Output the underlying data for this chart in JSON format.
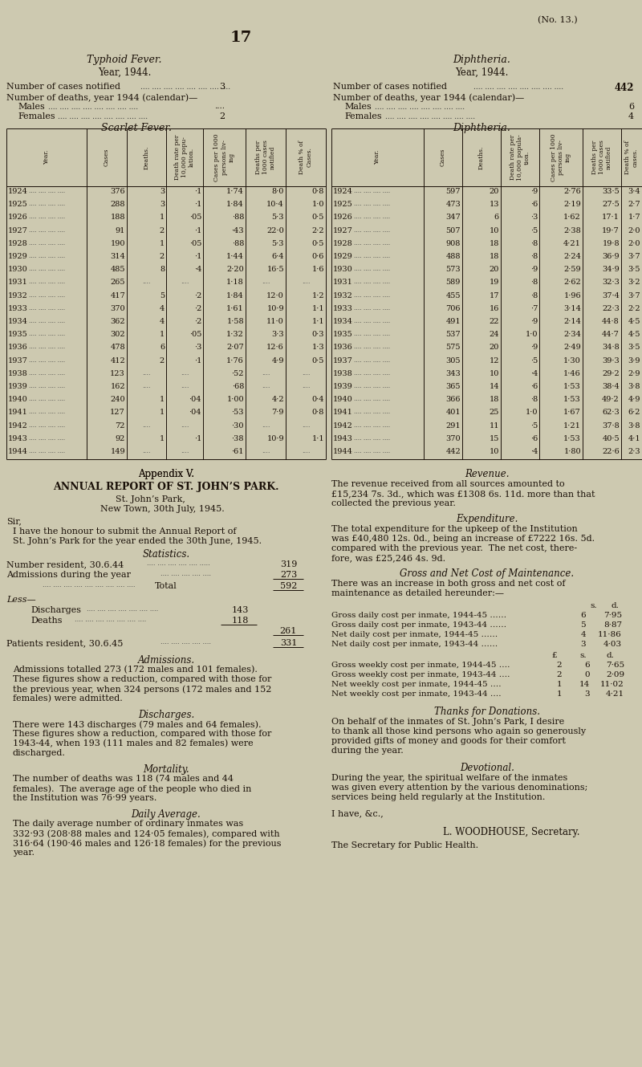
{
  "bg_color": "#cdc9b0",
  "page_num": "17",
  "no_label": "(No. 13.)",
  "typhoid_title": "Typhoid Fever.",
  "typhoid_year": "Year, 1944.",
  "typhoid_cases_label": "Number of cases notified",
  "typhoid_cases_val": "3",
  "typhoid_deaths_label": "Number of deaths, year 1944 (calendar)—",
  "typhoid_males_label": "Males",
  "typhoid_males_val": "....",
  "typhoid_females_label": "Females",
  "typhoid_females_val": "2",
  "diphtheria_title": "Diphtheria.",
  "diphtheria_year": "Year, 1944.",
  "diphtheria_cases_label": "Number of cases notified",
  "diphtheria_cases_val": "442",
  "diphtheria_deaths_label": "Number of deaths, year 1944 (calendar)—",
  "diphtheria_males_label": "Males",
  "diphtheria_males_val": "6",
  "diphtheria_females_label": "Females",
  "diphtheria_females_val": "4",
  "scarlet_title": "Scarlet Fever.",
  "diphtheria_table_title": "Diphtheria.",
  "scarlet_data": [
    [
      "1924",
      "376",
      "3",
      "·1",
      "1·74",
      "8·0",
      "0·8"
    ],
    [
      "1925",
      "288",
      "3",
      "·1",
      "1·84",
      "10·4",
      "1·0"
    ],
    [
      "1926",
      "188",
      "1",
      "·05",
      "·88",
      "5·3",
      "0·5"
    ],
    [
      "1927",
      "91",
      "2",
      "·1",
      "·43",
      "22·0",
      "2·2"
    ],
    [
      "1928",
      "190",
      "1",
      "·05",
      "·88",
      "5·3",
      "0·5"
    ],
    [
      "1929",
      "314",
      "2",
      "·1",
      "1·44",
      "6·4",
      "0·6"
    ],
    [
      "1930",
      "485",
      "8",
      "·4",
      "2·20",
      "16·5",
      "1·6"
    ],
    [
      "1931",
      "265",
      "",
      "",
      "1·18",
      "",
      ""
    ],
    [
      "1932",
      "417",
      "5",
      "·2",
      "1·84",
      "12·0",
      "1·2"
    ],
    [
      "1933",
      "370",
      "4",
      "·2",
      "1·61",
      "10·9",
      "1·1"
    ],
    [
      "1934",
      "362",
      "4",
      "·2",
      "1·58",
      "11·0",
      "1·1"
    ],
    [
      "1935",
      "302",
      "1",
      "·05",
      "1·32",
      "3·3",
      "0·3"
    ],
    [
      "1936",
      "478",
      "6",
      "·3",
      "2·07",
      "12·6",
      "1·3"
    ],
    [
      "1937",
      "412",
      "2",
      "·1",
      "1·76",
      "4·9",
      "0·5"
    ],
    [
      "1938",
      "123",
      "",
      "",
      "·52",
      "",
      ""
    ],
    [
      "1939",
      "162",
      "",
      "",
      "·68",
      "",
      ""
    ],
    [
      "1940",
      "240",
      "1",
      "·04",
      "1·00",
      "4·2",
      "0·4"
    ],
    [
      "1941",
      "127",
      "1",
      "·04",
      "·53",
      "7·9",
      "0·8"
    ],
    [
      "1942",
      "72",
      "",
      "",
      "·30",
      "",
      ""
    ],
    [
      "1943",
      "92",
      "1",
      "·1",
      "·38",
      "10·9",
      "1·1"
    ],
    [
      "1944",
      "149",
      "",
      "",
      "·61",
      "",
      ""
    ]
  ],
  "diph_data": [
    [
      "1924",
      "597",
      "20",
      "·9",
      "2·76",
      "33·5",
      "3·4"
    ],
    [
      "1925",
      "473",
      "13",
      "·6",
      "2·19",
      "27·5",
      "2·7"
    ],
    [
      "1926",
      "347",
      "6",
      "·3",
      "1·62",
      "17·1",
      "1·7"
    ],
    [
      "1927",
      "507",
      "10",
      "·5",
      "2·38",
      "19·7",
      "2·0"
    ],
    [
      "1928",
      "908",
      "18",
      "·8",
      "4·21",
      "19·8",
      "2·0"
    ],
    [
      "1929",
      "488",
      "18",
      "·8",
      "2·24",
      "36·9",
      "3·7"
    ],
    [
      "1930",
      "573",
      "20",
      "·9",
      "2·59",
      "34·9",
      "3·5"
    ],
    [
      "1931",
      "589",
      "19",
      "·8",
      "2·62",
      "32·3",
      "3·2"
    ],
    [
      "1932",
      "455",
      "17",
      "·8",
      "1·96",
      "37·4",
      "3·7"
    ],
    [
      "1933",
      "706",
      "16",
      "·7",
      "3·14",
      "22·3",
      "2·2"
    ],
    [
      "1934",
      "491",
      "22",
      "·9",
      "2·14",
      "44·8",
      "4·5"
    ],
    [
      "1935",
      "537",
      "24",
      "1·0",
      "2·34",
      "44·7",
      "4·5"
    ],
    [
      "1936",
      "575",
      "20",
      "·9",
      "2·49",
      "34·8",
      "3·5"
    ],
    [
      "1937",
      "305",
      "12",
      "·5",
      "1·30",
      "39·3",
      "3·9"
    ],
    [
      "1938",
      "343",
      "10",
      "·4",
      "1·46",
      "29·2",
      "2·9"
    ],
    [
      "1939",
      "365",
      "14",
      "·6",
      "1·53",
      "38·4",
      "3·8"
    ],
    [
      "1940",
      "366",
      "18",
      "·8",
      "1·53",
      "49·2",
      "4·9"
    ],
    [
      "1941",
      "401",
      "25",
      "1·0",
      "1·67",
      "62·3",
      "6·2"
    ],
    [
      "1942",
      "291",
      "11",
      "·5",
      "1·21",
      "37·8",
      "3·8"
    ],
    [
      "1943",
      "370",
      "15",
      "·6",
      "1·53",
      "40·5",
      "4·1"
    ],
    [
      "1944",
      "442",
      "10",
      "·4",
      "1·80",
      "22·6",
      "2·3"
    ]
  ],
  "appendix_title": "Appendix V.",
  "annual_report_title": "ANNUAL REPORT OF ST. JOHN’S PARK.",
  "park_address": "St. John’s Park,",
  "park_town": "New Town, 30th July, 1945.",
  "sir_text": "Sir,",
  "intro_lines": [
    "I have the honour to submit the Annual Report of",
    "St. John’s Park for the year ended the 30th June, 1945."
  ],
  "stats_title": "Statistics.",
  "admissions_title": "Admissions.",
  "admissions_lines": [
    "Admissions totalled 273 (172 males and 101 females).",
    "These figures show a reduction, compared with those for",
    "the previous year, when 324 persons (172 males and 152",
    "females) were admitted."
  ],
  "discharges_title": "Discharges.",
  "discharges_lines": [
    "There were 143 discharges (79 males and 64 females).",
    "These figures show a reduction, compared with those for",
    "1943-44, when 193 (111 males and 82 females) were",
    "discharged."
  ],
  "mortality_title": "Mortality.",
  "mortality_lines": [
    "The number of deaths was 118 (74 males and 44",
    "females).  The average age of the people who died in",
    "the Institution was 76·99 years."
  ],
  "daily_title": "Daily Average.",
  "daily_lines": [
    "The daily average number of ordinary inmates was",
    "332·93 (208·88 males and 124·05 females), compared with",
    "316·64 (190·46 males and 126·18 females) for the previous",
    "year."
  ],
  "revenue_title": "Revenue.",
  "revenue_lines": [
    "The revenue received from all sources amounted to",
    "£15,234 7s. 3d., which was £1308 6s. 11d. more than that",
    "collected the previous year."
  ],
  "expenditure_title": "Expenditure.",
  "expenditure_lines": [
    "The total expenditure for the upkeep of the Institution",
    "was £40,480 12s. 0d., being an increase of £7222 16s. 5d.",
    "compared with the previous year.  The net cost, there-",
    "fore, was £25,246 4s. 9d."
  ],
  "gross_title": "Gross and Net Cost of Maintenance.",
  "gross_intro_lines": [
    "There was an increase in both gross and net cost of",
    "maintenance as detailed hereunder:—"
  ],
  "gross_daily_lines": [
    [
      "Gross daily cost per inmate, 1944-45",
      "6",
      "7·95"
    ],
    [
      "Gross daily cost per inmate, 1943-44",
      "5",
      "8·87"
    ],
    [
      "Net daily cost per inmate, 1944-45",
      "4",
      "11·86"
    ],
    [
      "Net daily cost per inmate, 1943-44",
      "3",
      "4·03"
    ]
  ],
  "gross_weekly_lines": [
    [
      "Gross weekly cost per inmate, 1944-45",
      "2",
      "6",
      "7·65"
    ],
    [
      "Gross weekly cost per inmate, 1943-44",
      "2",
      "0",
      "2·09"
    ],
    [
      "Net weekly cost per inmate, 1944-45",
      "1",
      "14",
      "11·02"
    ],
    [
      "Net weekly cost per inmate, 1943-44",
      "1",
      "3",
      "4·21"
    ]
  ],
  "thanks_title": "Thanks for Donations.",
  "thanks_lines": [
    "On behalf of the inmates of St. John’s Park, I desire",
    "to thank all those kind persons who again so generously",
    "provided gifts of money and goods for their comfort",
    "during the year."
  ],
  "devotional_title": "Devotional.",
  "devotional_lines": [
    "During the year, the spiritual welfare of the inmates",
    "was given every attention by the various denominations;",
    "services being held regularly at the Institution."
  ],
  "closing_text": "I have, &c.,",
  "signatory": "L. WOODHOUSE, Secretary.",
  "secretary_text": "The Secretary for Public Health."
}
